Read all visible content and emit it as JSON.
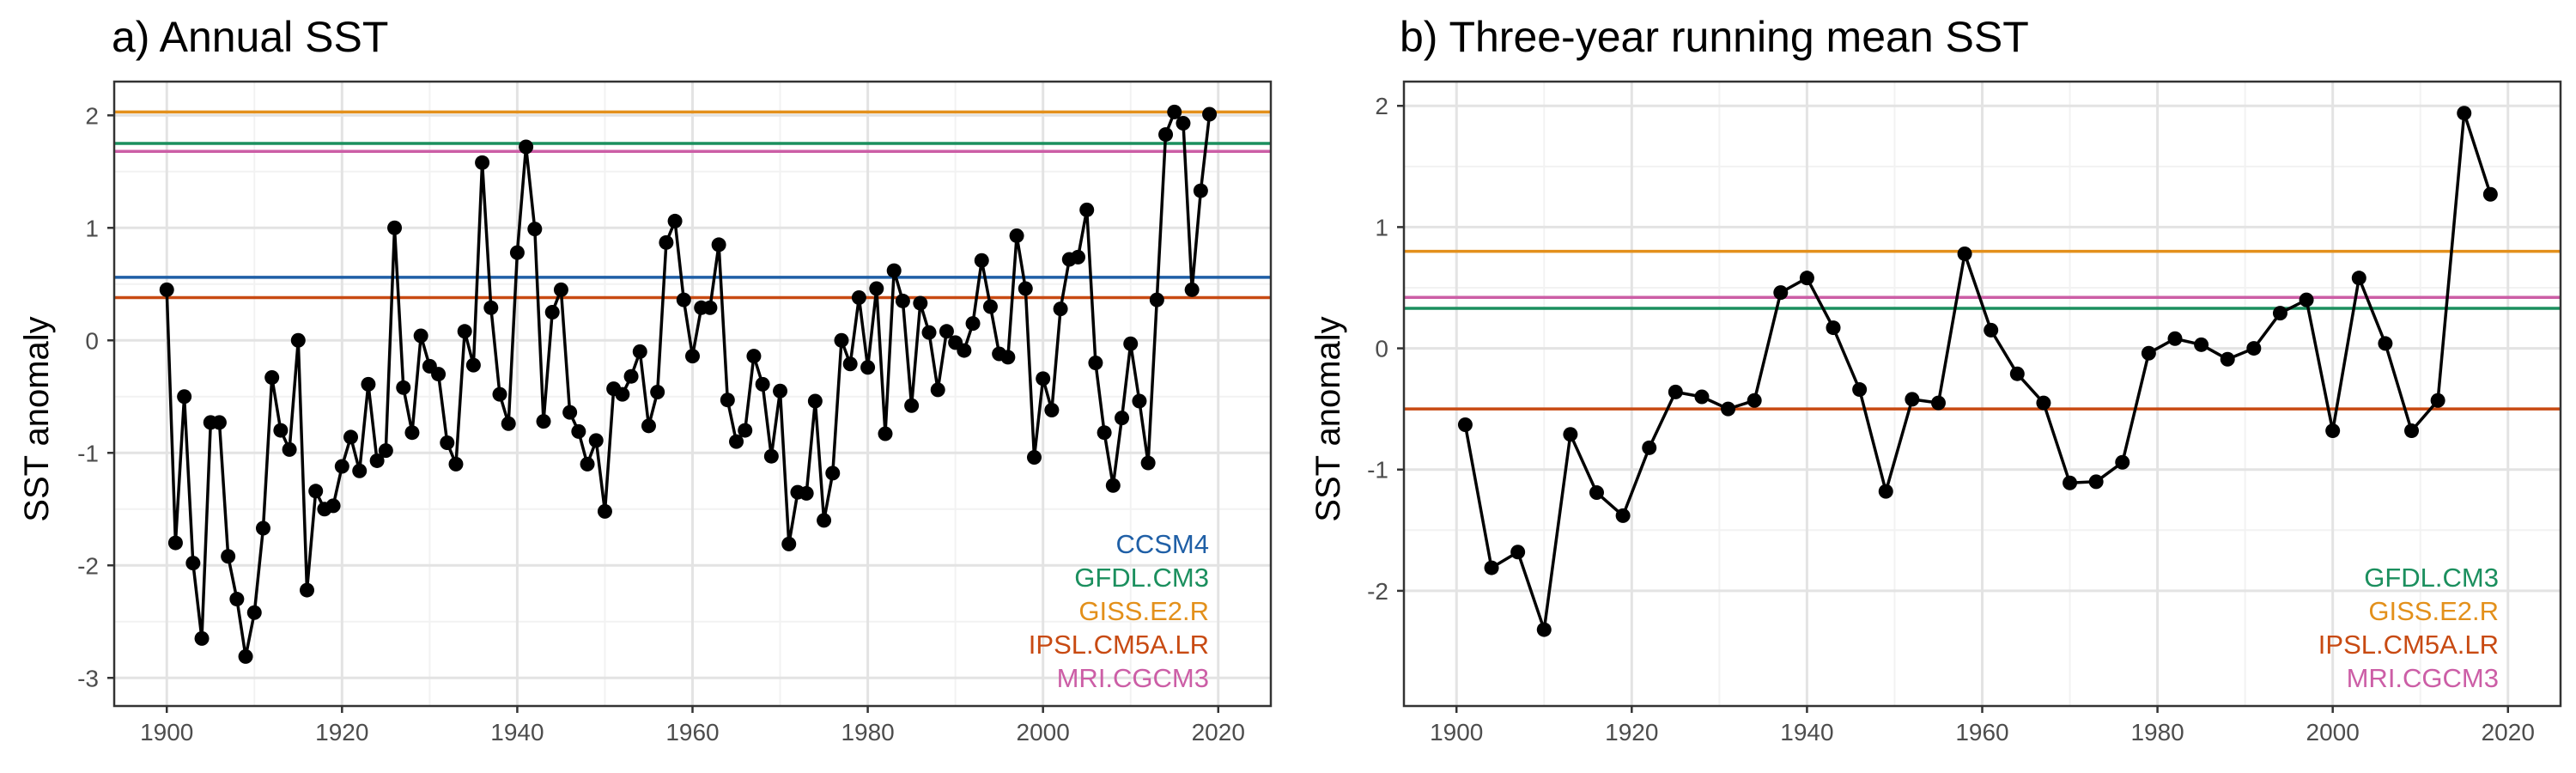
{
  "colors": {
    "CCSM4": "#1f5fa6",
    "GFDL.CM3": "#1b8f5e",
    "GISS.E2.R": "#e3901b",
    "IPSL.CM5A.LR": "#c84a12",
    "MRI.CGCM3": "#cc5ea6",
    "series": "#000000",
    "grid_major": "#e3e3e3",
    "grid_minor": "#f2f2f2",
    "panel_border": "#333333"
  },
  "chart_data": [
    {
      "type": "line",
      "title": "a) Annual SST",
      "xlabel": "",
      "ylabel": "SST anomaly",
      "xlim": [
        1894,
        2026
      ],
      "ylim": [
        -3.25,
        2.3
      ],
      "xticks": [
        1900,
        1920,
        1940,
        1960,
        1980,
        2000,
        2020
      ],
      "yticks": [
        -3,
        -2,
        -1,
        0,
        1,
        2
      ],
      "grid": true,
      "legend_position": "bottom-right",
      "series": [
        {
          "x": [
            1900,
            1901,
            1902,
            1903,
            1904,
            1905,
            1906,
            1907,
            1908,
            1909,
            1910,
            1911,
            1912,
            1913,
            1914,
            1915,
            1916,
            1917,
            1918,
            1919,
            1920,
            1921,
            1922,
            1923,
            1924,
            1925,
            1926,
            1927,
            1928,
            1929,
            1930,
            1931,
            1932,
            1933,
            1934,
            1935,
            1936,
            1937,
            1938,
            1939,
            1940,
            1941,
            1942,
            1943,
            1944,
            1945,
            1946,
            1947,
            1948,
            1949,
            1950,
            1951,
            1952,
            1953,
            1954,
            1955,
            1956,
            1957,
            1958,
            1959,
            1960,
            1961,
            1962,
            1963,
            1964,
            1965,
            1966,
            1967,
            1968,
            1969,
            1970,
            1971,
            1972,
            1973,
            1974,
            1975,
            1976,
            1977,
            1978,
            1979,
            1980,
            1981,
            1982,
            1983,
            1984,
            1985,
            1986,
            1987,
            1988,
            1989,
            1990,
            1991,
            1992,
            1993,
            1994,
            1995,
            1996,
            1997,
            1998,
            1999,
            2000,
            2001,
            2002,
            2003,
            2004,
            2005,
            2006,
            2007,
            2008,
            2009,
            2010,
            2011,
            2012,
            2013,
            2014,
            2015,
            2016,
            2017,
            2018,
            2019
          ],
          "y": [
            0.45,
            -1.8,
            -0.5,
            -1.98,
            -2.65,
            -0.73,
            -0.73,
            -1.92,
            -2.3,
            -2.81,
            -2.42,
            -1.67,
            -0.33,
            -0.8,
            -0.97,
            0.0,
            -2.22,
            -1.34,
            -1.5,
            -1.47,
            -1.12,
            -0.86,
            -1.16,
            -0.39,
            -1.07,
            -0.98,
            1.0,
            -0.42,
            -0.82,
            0.04,
            -0.23,
            -0.3,
            -0.91,
            -1.1,
            0.08,
            -0.22,
            1.58,
            0.29,
            -0.48,
            -0.74,
            0.78,
            1.72,
            0.99,
            -0.72,
            0.25,
            0.45,
            -0.64,
            -0.81,
            -1.1,
            -0.89,
            -1.52,
            -0.43,
            -0.48,
            -0.32,
            -0.1,
            -0.76,
            -0.46,
            0.87,
            1.06,
            0.36,
            -0.14,
            0.29,
            0.29,
            0.85,
            -0.53,
            -0.9,
            -0.8,
            -0.14,
            -0.39,
            -1.03,
            -0.45,
            -1.81,
            -1.35,
            -1.36,
            -0.54,
            -1.6,
            -1.18,
            0.0,
            -0.21,
            0.38,
            -0.24,
            0.46,
            -0.83,
            0.62,
            0.35,
            -0.58,
            0.33,
            0.07,
            -0.44,
            0.08,
            -0.02,
            -0.09,
            0.15,
            0.71,
            0.3,
            -0.12,
            -0.15,
            0.93,
            0.46,
            -1.04,
            -0.34,
            -0.62,
            0.28,
            0.72,
            0.74,
            1.16,
            -0.2,
            -0.82,
            -1.29,
            -0.69,
            -0.03,
            -0.54,
            -1.09,
            0.36,
            1.83,
            2.03,
            1.93,
            0.45,
            1.33,
            2.01
          ]
        }
      ],
      "reference_lines": [
        {
          "name": "CCSM4",
          "y": 0.56
        },
        {
          "name": "GFDL.CM3",
          "y": 1.75
        },
        {
          "name": "GISS.E2.R",
          "y": 2.03
        },
        {
          "name": "IPSL.CM5A.LR",
          "y": 0.38
        },
        {
          "name": "MRI.CGCM3",
          "y": 1.68
        }
      ],
      "legend": [
        "CCSM4",
        "GFDL.CM3",
        "GISS.E2.R",
        "IPSL.CM5A.LR",
        "MRI.CGCM3"
      ]
    },
    {
      "type": "line",
      "title": "b) Three-year running mean SST",
      "xlabel": "",
      "ylabel": "SST anomaly",
      "xlim": [
        1894,
        2026
      ],
      "ylim": [
        -2.95,
        2.2
      ],
      "xticks": [
        1900,
        1920,
        1940,
        1960,
        1980,
        2000,
        2020
      ],
      "yticks": [
        -2,
        -1,
        0,
        1,
        2
      ],
      "grid": true,
      "legend_position": "bottom-right",
      "series": [
        {
          "x": [
            1901,
            1904,
            1907,
            1910,
            1913,
            1916,
            1919,
            1922,
            1925,
            1928,
            1931,
            1934,
            1937,
            1940,
            1943,
            1946,
            1949,
            1952,
            1955,
            1958,
            1961,
            1964,
            1967,
            1970,
            1973,
            1976,
            1979,
            1982,
            1985,
            1988,
            1991,
            1994,
            1997,
            2000,
            2003,
            2006,
            2009,
            2012,
            2015,
            2018
          ],
          "y": [
            -0.63,
            -1.81,
            -1.68,
            -2.32,
            -0.71,
            -1.19,
            -1.38,
            -0.82,
            -0.36,
            -0.4,
            -0.5,
            -0.43,
            0.46,
            0.58,
            0.17,
            -0.34,
            -1.18,
            -0.42,
            -0.45,
            0.78,
            0.15,
            -0.21,
            -0.45,
            -1.11,
            -1.1,
            -0.94,
            -0.04,
            0.08,
            0.03,
            -0.09,
            0.0,
            0.29,
            0.4,
            -0.68,
            0.58,
            0.04,
            -0.68,
            -0.43,
            1.94,
            1.27
          ]
        }
      ],
      "reference_lines": [
        {
          "name": "GFDL.CM3",
          "y": 0.33
        },
        {
          "name": "GISS.E2.R",
          "y": 0.8
        },
        {
          "name": "IPSL.CM5A.LR",
          "y": -0.5
        },
        {
          "name": "MRI.CGCM3",
          "y": 0.42
        }
      ],
      "legend": [
        "GFDL.CM3",
        "GISS.E2.R",
        "IPSL.CM5A.LR",
        "MRI.CGCM3"
      ]
    }
  ]
}
